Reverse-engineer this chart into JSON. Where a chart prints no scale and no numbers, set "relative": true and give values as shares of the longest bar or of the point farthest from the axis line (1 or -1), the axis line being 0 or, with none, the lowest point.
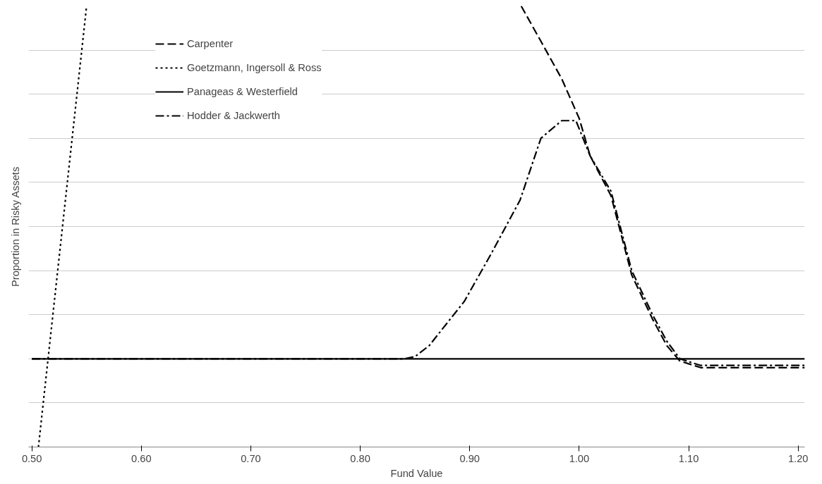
{
  "chart_data": {
    "type": "line",
    "relative": true,
    "xlabel": "Fund Value",
    "ylabel": "Proportion in Risky Assets",
    "xlim": [
      0.497,
      1.206
    ],
    "xticks": [
      {
        "value": 0.5,
        "label": "0.50"
      },
      {
        "value": 0.6,
        "label": "0.60"
      },
      {
        "value": 0.7,
        "label": "0.70"
      },
      {
        "value": 0.8,
        "label": "0.80"
      },
      {
        "value": 0.9,
        "label": "0.90"
      },
      {
        "value": 1.0,
        "label": "1.00"
      },
      {
        "value": 1.1,
        "label": "1.10"
      },
      {
        "value": 1.2,
        "label": "1.20"
      }
    ],
    "grid": "y",
    "legend": "top left",
    "marker": "none",
    "series": [
      {
        "name": "Carpenter",
        "color": "#000000",
        "line_style": "dashed",
        "x": [
          0.947,
          0.965,
          0.984,
          1.0,
          1.01,
          1.029,
          1.048,
          1.067,
          1.08,
          1.092,
          1.111,
          1.206
        ],
        "values": [
          1.0,
          0.92,
          0.835,
          0.745,
          0.66,
          0.57,
          0.39,
          0.29,
          0.23,
          0.195,
          0.18,
          0.18
        ]
      },
      {
        "name": "Goetzmann, Ingersoll & Ross",
        "color": "#000000",
        "line_style": "dotted",
        "x": [
          0.506,
          0.55
        ],
        "values": [
          0.0,
          1.0
        ]
      },
      {
        "name": "Panageas & Westerfield",
        "color": "#000000",
        "line_style": "solid",
        "x": [
          0.5,
          1.206
        ],
        "values": [
          0.2,
          0.2
        ]
      },
      {
        "name": "Hodder & Jackwerth",
        "color": "#000000",
        "line_style": "dashdot",
        "x": [
          0.5,
          0.84,
          0.85,
          0.863,
          0.895,
          0.92,
          0.946,
          0.965,
          0.984,
          0.997,
          1.01,
          1.029,
          1.048,
          1.067,
          1.08,
          1.092,
          1.111,
          1.206
        ],
        "values": [
          0.2,
          0.2,
          0.205,
          0.23,
          0.33,
          0.44,
          0.56,
          0.7,
          0.74,
          0.74,
          0.66,
          0.58,
          0.4,
          0.3,
          0.24,
          0.2,
          0.185,
          0.185
        ]
      }
    ]
  }
}
